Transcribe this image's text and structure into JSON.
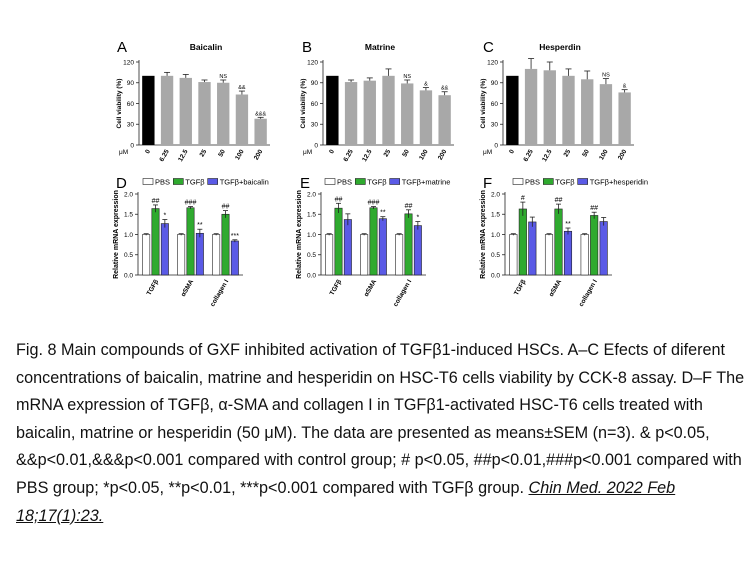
{
  "colors": {
    "control": "#000000",
    "gray": "#a8a8a8",
    "pbs": "#ffffff",
    "tgfb": "#2faa2f",
    "treat": "#5a5ae6",
    "axis": "#222222"
  },
  "chart_data": [
    {
      "panel": "A",
      "type": "bar",
      "title": "Baicalin",
      "ylabel": "Cell viability (%)",
      "xunit": "μM",
      "ylim": [
        0,
        120
      ],
      "yticks": [
        0,
        30,
        60,
        90,
        120
      ],
      "categories": [
        "0",
        "6.25",
        "12.5",
        "25",
        "50",
        "100",
        "200"
      ],
      "values": [
        100,
        100,
        97,
        91,
        90,
        73,
        38
      ],
      "errors": [
        0,
        5,
        5,
        3,
        4,
        5,
        2
      ],
      "annotations": [
        "",
        "",
        "",
        "",
        "NS",
        "&&",
        "&&&"
      ]
    },
    {
      "panel": "B",
      "type": "bar",
      "title": "Matrine",
      "ylabel": "Cell viability (%)",
      "xunit": "μM",
      "ylim": [
        0,
        120
      ],
      "yticks": [
        0,
        30,
        60,
        90,
        120
      ],
      "categories": [
        "0",
        "6.25",
        "12.5",
        "25",
        "50",
        "100",
        "200"
      ],
      "values": [
        100,
        91,
        93,
        100,
        89,
        79,
        72
      ],
      "errors": [
        0,
        3,
        4,
        10,
        5,
        4,
        5
      ],
      "annotations": [
        "",
        "",
        "",
        "",
        "NS",
        "&",
        "&&"
      ]
    },
    {
      "panel": "C",
      "type": "bar",
      "title": "Hesperdin",
      "ylabel": "Cell viability (%)",
      "xunit": "μM",
      "ylim": [
        0,
        120
      ],
      "yticks": [
        0,
        30,
        60,
        90,
        120
      ],
      "categories": [
        "0",
        "6.25",
        "12.5",
        "25",
        "50",
        "100",
        "200"
      ],
      "values": [
        100,
        110,
        108,
        100,
        95,
        88,
        76
      ],
      "errors": [
        0,
        15,
        12,
        10,
        12,
        8,
        4
      ],
      "annotations": [
        "",
        "",
        "",
        "",
        "",
        "NS",
        "&"
      ]
    },
    {
      "panel": "D",
      "type": "bar",
      "ylabel": "Relative mRNA expression",
      "ylim": [
        0,
        2.0
      ],
      "yticks": [
        "0.0",
        "0.5",
        "1.0",
        "1.5",
        "2.0"
      ],
      "categories": [
        "TGFβ",
        "αSMA",
        "collagen I"
      ],
      "legend": [
        "PBS",
        "TGFβ",
        "TGFβ+baicalin"
      ],
      "series": [
        {
          "name": "PBS",
          "values": [
            1.0,
            1.0,
            1.0
          ],
          "errors": [
            0.02,
            0.02,
            0.02
          ],
          "marks": [
            "",
            "",
            ""
          ]
        },
        {
          "name": "TGFβ",
          "values": [
            1.64,
            1.66,
            1.5
          ],
          "errors": [
            0.09,
            0.03,
            0.09
          ],
          "marks": [
            "##",
            "###",
            "##"
          ]
        },
        {
          "name": "TGFβ+baicalin",
          "values": [
            1.27,
            1.03,
            0.84
          ],
          "errors": [
            0.1,
            0.1,
            0.03
          ],
          "marks": [
            "*",
            "**",
            "***"
          ]
        }
      ]
    },
    {
      "panel": "E",
      "type": "bar",
      "ylabel": "Relative mRNA expression",
      "ylim": [
        0,
        2.0
      ],
      "yticks": [
        "0.0",
        "0.5",
        "1.0",
        "1.5",
        "2.0"
      ],
      "categories": [
        "TGFβ",
        "αSMA",
        "collagen I"
      ],
      "legend": [
        "PBS",
        "TGFβ",
        "TGFβ+matrine"
      ],
      "series": [
        {
          "name": "PBS",
          "values": [
            1.0,
            1.0,
            1.0
          ],
          "errors": [
            0.02,
            0.02,
            0.02
          ],
          "marks": [
            "",
            "",
            ""
          ]
        },
        {
          "name": "TGFβ",
          "values": [
            1.65,
            1.66,
            1.51
          ],
          "errors": [
            0.12,
            0.03,
            0.1
          ],
          "marks": [
            "##",
            "###",
            "##"
          ]
        },
        {
          "name": "TGFβ+matrine",
          "values": [
            1.37,
            1.39,
            1.22
          ],
          "errors": [
            0.14,
            0.05,
            0.1
          ],
          "marks": [
            "",
            "**",
            "*"
          ]
        }
      ]
    },
    {
      "panel": "F",
      "type": "bar",
      "ylabel": "Relative mRNA expression",
      "ylim": [
        0,
        2.0
      ],
      "yticks": [
        "0.0",
        "0.5",
        "1.0",
        "1.5",
        "2.0"
      ],
      "categories": [
        "TGFβ",
        "αSMA",
        "collagen I"
      ],
      "legend": [
        "PBS",
        "TGFβ",
        "TGFβ+hesperidin"
      ],
      "series": [
        {
          "name": "PBS",
          "values": [
            1.0,
            1.0,
            1.0
          ],
          "errors": [
            0.02,
            0.02,
            0.02
          ],
          "marks": [
            "",
            "",
            ""
          ]
        },
        {
          "name": "TGFβ",
          "values": [
            1.63,
            1.63,
            1.47
          ],
          "errors": [
            0.17,
            0.12,
            0.08
          ],
          "marks": [
            "#",
            "##",
            "##"
          ]
        },
        {
          "name": "TGFβ+hesperidin",
          "values": [
            1.31,
            1.08,
            1.32
          ],
          "errors": [
            0.12,
            0.08,
            0.1
          ],
          "marks": [
            "",
            "**",
            ""
          ]
        }
      ]
    }
  ],
  "caption": {
    "text": "Fig. 8 Main compounds of GXF inhibited activation of TGFβ1-induced HSCs. A–C Efects of diferent concentrations of baicalin, matrine and hesperidin on HSC-T6 cells viability by CCK-8 assay. D–F The mRNA expression of TGFβ, α-SMA and collagen I in TGFβ1-activated HSC-T6 cells treated with baicalin, matrine or hesperidin (50 μM). The data are presented as means±SEM (n=3). & p<0.05, &&p<0.01,&&&p<0.001 compared with control group; # p<0.05, ##p<0.01,###p<0.001 compared with PBS group; *p<0.05, **p<0.01, ***p<0.001 compared with TGFβ group. ",
    "citation": "Chin Med. 2022 Feb 18;17(1):23."
  }
}
